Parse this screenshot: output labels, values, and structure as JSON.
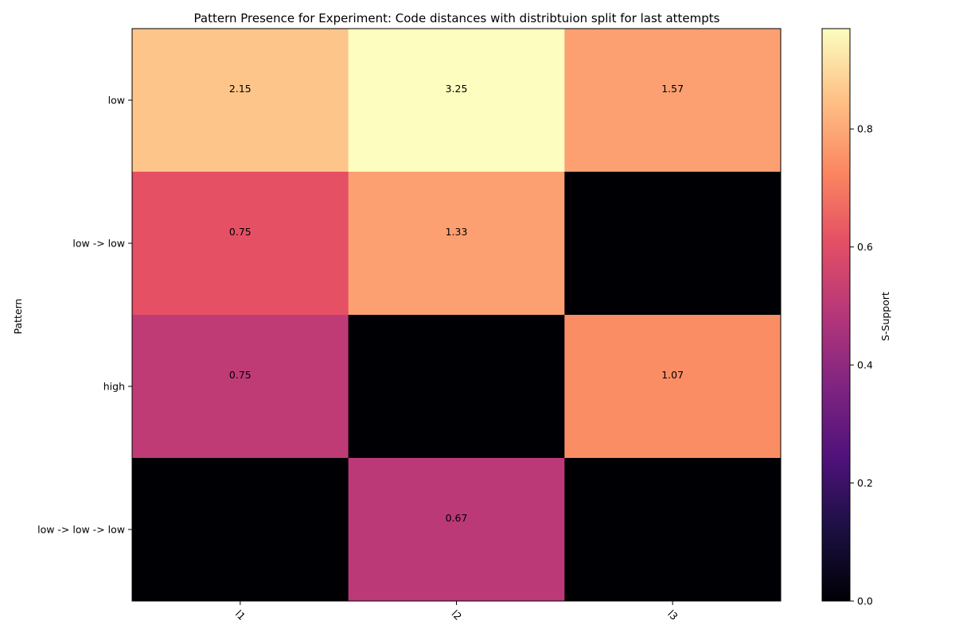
{
  "chart_data": {
    "type": "heatmap",
    "title": "Pattern Presence for Experiment: Code distances with distribtuion split for last attempts",
    "ylabel": "Pattern",
    "xlabel": "",
    "x_categories": [
      "l1",
      "l2",
      "l3"
    ],
    "y_categories": [
      "low",
      "low -> low",
      "high",
      "low -> low -> low"
    ],
    "support": [
      [
        0.86,
        0.97,
        0.78
      ],
      [
        0.61,
        0.78,
        0.0
      ],
      [
        0.51,
        0.0,
        0.74
      ],
      [
        0.0,
        0.5,
        0.0
      ]
    ],
    "annotations": [
      [
        "2.15",
        "3.25",
        "1.57"
      ],
      [
        "0.75",
        "1.33",
        ""
      ],
      [
        "0.75",
        "",
        "1.07"
      ],
      [
        "",
        "0.67",
        ""
      ]
    ],
    "colorbar": {
      "label": "S-Support",
      "min": 0.0,
      "max": 0.97,
      "ticks": [
        "0.0",
        "0.2",
        "0.4",
        "0.6",
        "0.8"
      ],
      "colormap": "magma"
    },
    "x_tick_rotation": "45deg"
  }
}
